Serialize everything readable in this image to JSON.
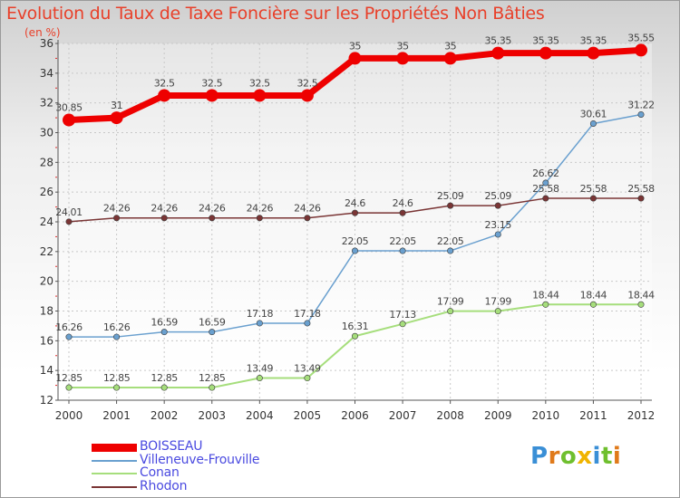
{
  "header": {
    "title": "Evolution du Taux de Taxe Foncière sur les Propriétés Non Bâties",
    "unit": "(en %)"
  },
  "logo": {
    "text": "Proxiti"
  },
  "colors": {
    "title": "#e8402a",
    "legend_text": "#4a4ae0",
    "grid": "#c8c8c8"
  },
  "chart_data": {
    "type": "line",
    "title": "Evolution du Taux de Taxe Foncière sur les Propriétés Non Bâties",
    "ylabel": "(en %)",
    "xlabel": "",
    "x": [
      "2000",
      "2001",
      "2002",
      "2003",
      "2004",
      "2005",
      "2006",
      "2007",
      "2008",
      "2009",
      "2010",
      "2011",
      "2012"
    ],
    "ylim": [
      12,
      36
    ],
    "yticks": [
      12,
      14,
      16,
      18,
      20,
      22,
      24,
      26,
      28,
      30,
      32,
      34,
      36
    ],
    "grid": true,
    "legend": "bottom-left",
    "series": [
      {
        "name": "BOISSEAU",
        "color": "#ee0000",
        "values": [
          30.85,
          31,
          32.5,
          32.5,
          32.5,
          32.5,
          35,
          35,
          35,
          35.35,
          35.35,
          35.35,
          35.55
        ],
        "labels": [
          "30.85",
          "31",
          "32.5",
          "32.5",
          "32.5",
          "32.5",
          "35",
          "35",
          "35",
          "35.35",
          "35.35",
          "35.35",
          "35.55"
        ]
      },
      {
        "name": "Villeneuve-Frouville",
        "color": "#6aa0cf",
        "values": [
          16.26,
          16.26,
          16.59,
          16.59,
          17.18,
          17.18,
          22.05,
          22.05,
          22.05,
          23.15,
          26.62,
          30.61,
          31.22
        ],
        "labels": [
          "16.26",
          "16.26",
          "16.59",
          "16.59",
          "17.18",
          "17.18",
          "22.05",
          "22.05",
          "22.05",
          "23.15",
          "26.62",
          "30.61",
          "31.22"
        ]
      },
      {
        "name": "Conan",
        "color": "#a6de7c",
        "values": [
          12.85,
          12.85,
          12.85,
          12.85,
          13.49,
          13.49,
          16.31,
          17.13,
          17.99,
          17.99,
          18.44,
          18.44,
          18.44
        ],
        "labels": [
          "12.85",
          "12.85",
          "12.85",
          "12.85",
          "13.49",
          "13.49",
          "16.31",
          "17.13",
          "17.99",
          "17.99",
          "18.44",
          "18.44",
          "18.44"
        ]
      },
      {
        "name": "Rhodon",
        "color": "#7a3535",
        "values": [
          24.01,
          24.26,
          24.26,
          24.26,
          24.26,
          24.26,
          24.6,
          24.6,
          25.09,
          25.09,
          25.58,
          25.58,
          25.58
        ],
        "labels": [
          "24.01",
          "24.26",
          "24.26",
          "24.26",
          "24.26",
          "24.26",
          "24.6",
          "24.6",
          "25.09",
          "25.09",
          "25.58",
          "25.58",
          "25.58"
        ]
      }
    ]
  }
}
